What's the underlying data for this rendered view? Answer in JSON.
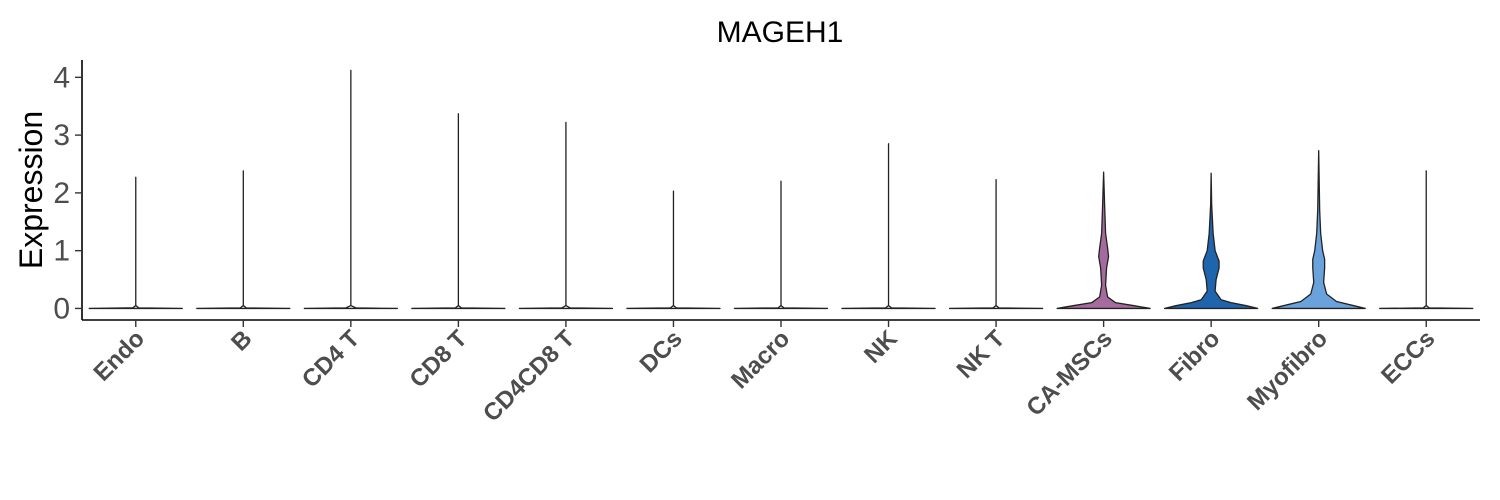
{
  "chart_data": {
    "type": "violin",
    "title": "MAGEH1",
    "ylabel": "Expression",
    "xlabel": "",
    "ylim": [
      -0.2,
      4.3
    ],
    "yticks": [
      0,
      1,
      2,
      3,
      4
    ],
    "categories": [
      "Endo",
      "B",
      "CD4 T",
      "CD8 T",
      "CD4CD8 T",
      "DCs",
      "Macro",
      "NK",
      "NK T",
      "CA-MSCs",
      "Fibro",
      "Myofibro",
      "ECCs"
    ],
    "max_values": [
      2.27,
      2.38,
      4.12,
      3.37,
      3.22,
      2.03,
      2.2,
      2.85,
      2.23,
      2.36,
      2.34,
      2.73,
      2.38
    ],
    "fills": [
      "#ffffff",
      "#ffffff",
      "#ffffff",
      "#ffffff",
      "#ffffff",
      "#ffffff",
      "#ffffff",
      "#ffffff",
      "#ffffff",
      "#a56a9e",
      "#1f65ad",
      "#6aa3dc",
      "#ffffff"
    ],
    "profiles": [
      [
        [
          0,
          0.47
        ],
        [
          0.01,
          0.03
        ],
        [
          0.05,
          0
        ]
      ],
      [
        [
          0,
          0.47
        ],
        [
          0.01,
          0.03
        ],
        [
          0.05,
          0
        ]
      ],
      [
        [
          0,
          0.47
        ],
        [
          0.01,
          0.05
        ],
        [
          0.05,
          0
        ]
      ],
      [
        [
          0,
          0.47
        ],
        [
          0.01,
          0.03
        ],
        [
          0.05,
          0
        ]
      ],
      [
        [
          0,
          0.47
        ],
        [
          0.01,
          0.04
        ],
        [
          0.05,
          0
        ]
      ],
      [
        [
          0,
          0.47
        ],
        [
          0.01,
          0.03
        ],
        [
          0.05,
          0
        ]
      ],
      [
        [
          0,
          0.47
        ],
        [
          0.01,
          0.03
        ],
        [
          0.05,
          0
        ]
      ],
      [
        [
          0,
          0.47
        ],
        [
          0.01,
          0.03
        ],
        [
          0.05,
          0
        ]
      ],
      [
        [
          0,
          0.47
        ],
        [
          0.01,
          0.03
        ],
        [
          0.05,
          0
        ]
      ],
      [
        [
          0,
          0.47
        ],
        [
          0.05,
          0.3
        ],
        [
          0.1,
          0.12
        ],
        [
          0.2,
          0.04
        ],
        [
          0.4,
          0.02
        ],
        [
          0.7,
          0.03
        ],
        [
          0.9,
          0.05
        ],
        [
          1.05,
          0.04
        ],
        [
          1.3,
          0.02
        ],
        [
          1.8,
          0.01
        ]
      ],
      [
        [
          0,
          0.47
        ],
        [
          0.05,
          0.35
        ],
        [
          0.1,
          0.2
        ],
        [
          0.15,
          0.1
        ],
        [
          0.3,
          0.04
        ],
        [
          0.5,
          0.05
        ],
        [
          0.7,
          0.08
        ],
        [
          0.82,
          0.08
        ],
        [
          1.0,
          0.04
        ],
        [
          1.3,
          0.02
        ],
        [
          1.8,
          0.005
        ]
      ],
      [
        [
          0,
          0.47
        ],
        [
          0.05,
          0.35
        ],
        [
          0.12,
          0.18
        ],
        [
          0.25,
          0.08
        ],
        [
          0.45,
          0.05
        ],
        [
          0.7,
          0.06
        ],
        [
          0.85,
          0.06
        ],
        [
          1.0,
          0.04
        ],
        [
          1.3,
          0.02
        ],
        [
          1.7,
          0.01
        ],
        [
          2.2,
          0.005
        ]
      ],
      [
        [
          0,
          0.47
        ],
        [
          0.01,
          0.03
        ],
        [
          0.05,
          0
        ]
      ]
    ]
  }
}
